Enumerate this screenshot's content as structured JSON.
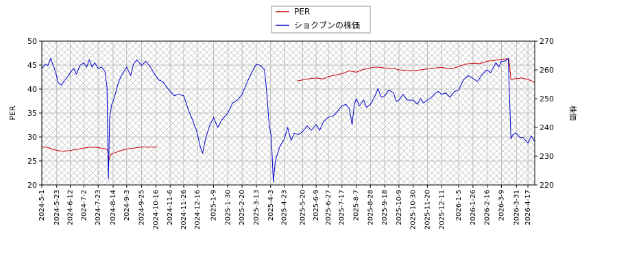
{
  "chart_data": {
    "type": "line",
    "title": "",
    "xlabel": "",
    "ylabel_left": "PER",
    "ylabel_right": "株価",
    "ylim_left": [
      20,
      50
    ],
    "ylim_right": [
      220,
      270
    ],
    "yticks_left": [
      20,
      25,
      30,
      35,
      40,
      45,
      50
    ],
    "yticks_right": [
      220,
      230,
      240,
      250,
      260,
      270
    ],
    "grid": true,
    "legend_position": "top-center",
    "x_range": [
      "2024-05-01",
      "2026-04-27"
    ],
    "x_ticks": [
      "2024-5-1",
      "2024-5-23",
      "2024-6-12",
      "2024-7-2",
      "2024-7-23",
      "2024-8-14",
      "2024-9-3",
      "2024-9-25",
      "2024-10-16",
      "2024-11-6",
      "2024-11-26",
      "2024-12-16",
      "2025-1-9",
      "2025-1-30",
      "2025-2-20",
      "2025-3-13",
      "2025-4-3",
      "2025-4-23",
      "2025-5-20",
      "2025-6-9",
      "2025-6-27",
      "2025-7-17",
      "2025-8-7",
      "2025-8-28",
      "2025-9-18",
      "2025-10-9",
      "2025-10-30",
      "2025-11-20",
      "2025-12-11",
      "2026-1-5",
      "2026-1-26",
      "2026-2-16",
      "2026-3-9",
      "2026-3-31",
      "2026-4-17"
    ],
    "series": [
      {
        "name": "PER",
        "axis": "left",
        "color": "#cc0000",
        "segments": [
          [
            [
              "2024-05-01",
              28.0
            ],
            [
              "2024-05-10",
              27.8
            ],
            [
              "2024-05-20",
              27.3
            ],
            [
              "2024-06-01",
              27.0
            ],
            [
              "2024-06-12",
              27.2
            ],
            [
              "2024-06-25",
              27.5
            ],
            [
              "2024-07-02",
              27.7
            ],
            [
              "2024-07-12",
              27.9
            ],
            [
              "2024-07-23",
              27.8
            ],
            [
              "2024-07-31",
              27.6
            ],
            [
              "2024-08-06",
              27.3
            ],
            [
              "2024-08-07",
              24.7
            ],
            [
              "2024-08-10",
              26.2
            ],
            [
              "2024-08-14",
              26.6
            ],
            [
              "2024-08-22",
              27.0
            ],
            [
              "2024-09-03",
              27.5
            ],
            [
              "2024-09-14",
              27.7
            ],
            [
              "2024-09-25",
              27.9
            ],
            [
              "2024-10-05",
              27.9
            ],
            [
              "2024-10-16",
              27.9
            ],
            [
              "2024-10-18",
              27.9
            ]
          ],
          [
            [
              "2025-05-12",
              41.7
            ],
            [
              "2025-05-20",
              41.9
            ],
            [
              "2025-06-01",
              42.2
            ],
            [
              "2025-06-09",
              42.3
            ],
            [
              "2025-06-20",
              42.1
            ],
            [
              "2025-06-27",
              42.6
            ],
            [
              "2025-07-10",
              43.0
            ],
            [
              "2025-07-17",
              43.2
            ],
            [
              "2025-07-28",
              43.8
            ],
            [
              "2025-08-07",
              43.5
            ],
            [
              "2025-08-15",
              44.0
            ],
            [
              "2025-08-28",
              44.4
            ],
            [
              "2025-09-05",
              44.6
            ],
            [
              "2025-09-18",
              44.4
            ],
            [
              "2025-10-01",
              44.3
            ],
            [
              "2025-10-09",
              44.0
            ],
            [
              "2025-10-20",
              43.9
            ],
            [
              "2025-10-30",
              43.8
            ],
            [
              "2025-11-10",
              44.0
            ],
            [
              "2025-11-20",
              44.2
            ],
            [
              "2025-12-01",
              44.4
            ],
            [
              "2025-12-11",
              44.5
            ],
            [
              "2025-12-25",
              44.2
            ],
            [
              "2026-01-05",
              44.7
            ],
            [
              "2026-01-15",
              45.2
            ],
            [
              "2026-01-26",
              45.4
            ],
            [
              "2026-02-05",
              45.3
            ],
            [
              "2026-02-16",
              45.8
            ],
            [
              "2026-02-28",
              46.0
            ],
            [
              "2026-03-09",
              46.2
            ],
            [
              "2026-03-17",
              46.3
            ],
            [
              "2026-03-20",
              46.1
            ],
            [
              "2026-03-23",
              42.0
            ],
            [
              "2026-03-31",
              42.2
            ],
            [
              "2026-04-08",
              42.3
            ],
            [
              "2026-04-17",
              42.0
            ],
            [
              "2026-04-27",
              41.4
            ]
          ]
        ]
      },
      {
        "name": "ショクブンの株価",
        "axis": "right",
        "color": "#0000cc",
        "segments": [
          [
            [
              "2024-05-01",
              260.5
            ],
            [
              "2024-05-06",
              262.0
            ],
            [
              "2024-05-10",
              261.5
            ],
            [
              "2024-05-14",
              264.0
            ],
            [
              "2024-05-17",
              262.0
            ],
            [
              "2024-05-21",
              259.5
            ],
            [
              "2024-05-25",
              255.5
            ],
            [
              "2024-05-30",
              254.8
            ],
            [
              "2024-06-04",
              256.5
            ],
            [
              "2024-06-08",
              257.5
            ],
            [
              "2024-06-12",
              259.0
            ],
            [
              "2024-06-17",
              260.5
            ],
            [
              "2024-06-21",
              258.5
            ],
            [
              "2024-06-26",
              261.5
            ],
            [
              "2024-07-02",
              262.5
            ],
            [
              "2024-07-06",
              261.0
            ],
            [
              "2024-07-10",
              263.5
            ],
            [
              "2024-07-14",
              261.0
            ],
            [
              "2024-07-18",
              262.5
            ],
            [
              "2024-07-23",
              260.5
            ],
            [
              "2024-07-28",
              261.0
            ],
            [
              "2024-08-02",
              259.5
            ],
            [
              "2024-08-05",
              254.0
            ],
            [
              "2024-08-07",
              222.0
            ],
            [
              "2024-08-09",
              243.5
            ],
            [
              "2024-08-12",
              248.0
            ],
            [
              "2024-08-16",
              250.5
            ],
            [
              "2024-08-21",
              255.0
            ],
            [
              "2024-08-26",
              258.0
            ],
            [
              "2024-09-03",
              261.0
            ],
            [
              "2024-09-09",
              258.0
            ],
            [
              "2024-09-13",
              262.0
            ],
            [
              "2024-09-18",
              263.5
            ],
            [
              "2024-09-25",
              261.5
            ],
            [
              "2024-10-01",
              263.0
            ],
            [
              "2024-10-08",
              261.0
            ],
            [
              "2024-10-14",
              258.5
            ],
            [
              "2024-10-20",
              256.5
            ],
            [
              "2024-10-26",
              256.0
            ],
            [
              "2024-11-01",
              254.0
            ],
            [
              "2024-11-06",
              252.5
            ],
            [
              "2024-11-12",
              251.0
            ],
            [
              "2024-11-18",
              251.5
            ],
            [
              "2024-11-26",
              251.0
            ],
            [
              "2024-12-03",
              246.0
            ],
            [
              "2024-12-10",
              242.0
            ],
            [
              "2024-12-16",
              238.0
            ],
            [
              "2024-12-20",
              233.5
            ],
            [
              "2024-12-24",
              231.0
            ],
            [
              "2024-12-28",
              236.0
            ],
            [
              "2025-01-03",
              240.5
            ],
            [
              "2025-01-09",
              243.5
            ],
            [
              "2025-01-15",
              240.0
            ],
            [
              "2025-01-21",
              242.5
            ],
            [
              "2025-01-30",
              245.0
            ],
            [
              "2025-02-06",
              248.5
            ],
            [
              "2025-02-13",
              249.5
            ],
            [
              "2025-02-20",
              251.5
            ],
            [
              "2025-02-27",
              255.5
            ],
            [
              "2025-03-06",
              259.0
            ],
            [
              "2025-03-13",
              262.0
            ],
            [
              "2025-03-19",
              261.5
            ],
            [
              "2025-03-25",
              260.0
            ],
            [
              "2025-03-28",
              253.0
            ],
            [
              "2025-04-01",
              240.5
            ],
            [
              "2025-04-04",
              237.0
            ],
            [
              "2025-04-07",
              221.0
            ],
            [
              "2025-04-10",
              228.5
            ],
            [
              "2025-04-16",
              233.0
            ],
            [
              "2025-04-23",
              236.0
            ],
            [
              "2025-04-28",
              240.0
            ],
            [
              "2025-05-03",
              235.5
            ],
            [
              "2025-05-08",
              238.0
            ],
            [
              "2025-05-14",
              237.5
            ],
            [
              "2025-05-20",
              238.5
            ],
            [
              "2025-05-27",
              240.5
            ],
            [
              "2025-06-02",
              239.0
            ],
            [
              "2025-06-09",
              241.0
            ],
            [
              "2025-06-14",
              239.0
            ],
            [
              "2025-06-20",
              242.0
            ],
            [
              "2025-06-27",
              243.5
            ],
            [
              "2025-07-04",
              244.0
            ],
            [
              "2025-07-10",
              245.5
            ],
            [
              "2025-07-17",
              247.5
            ],
            [
              "2025-07-23",
              248.0
            ],
            [
              "2025-07-28",
              246.5
            ],
            [
              "2025-08-01",
              241.0
            ],
            [
              "2025-08-04",
              247.5
            ],
            [
              "2025-08-07",
              250.0
            ],
            [
              "2025-08-12",
              247.5
            ],
            [
              "2025-08-18",
              249.5
            ],
            [
              "2025-08-22",
              247.0
            ],
            [
              "2025-08-28",
              248.0
            ],
            [
              "2025-09-04",
              251.0
            ],
            [
              "2025-09-08",
              253.5
            ],
            [
              "2025-09-13",
              250.5
            ],
            [
              "2025-09-18",
              251.0
            ],
            [
              "2025-09-24",
              253.0
            ],
            [
              "2025-10-01",
              252.0
            ],
            [
              "2025-10-05",
              249.0
            ],
            [
              "2025-10-09",
              249.5
            ],
            [
              "2025-10-15",
              251.5
            ],
            [
              "2025-10-21",
              249.5
            ],
            [
              "2025-10-30",
              249.5
            ],
            [
              "2025-11-05",
              248.0
            ],
            [
              "2025-11-10",
              250.0
            ],
            [
              "2025-11-14",
              248.5
            ],
            [
              "2025-11-20",
              249.5
            ],
            [
              "2025-11-26",
              250.5
            ],
            [
              "2025-12-02",
              252.0
            ],
            [
              "2025-12-06",
              252.5
            ],
            [
              "2025-12-11",
              251.5
            ],
            [
              "2025-12-17",
              252.0
            ],
            [
              "2025-12-23",
              250.5
            ],
            [
              "2025-12-30",
              252.5
            ],
            [
              "2026-01-05",
              253.0
            ],
            [
              "2026-01-12",
              256.5
            ],
            [
              "2026-01-19",
              258.0
            ],
            [
              "2026-01-26",
              257.0
            ],
            [
              "2026-02-02",
              256.0
            ],
            [
              "2026-02-09",
              258.5
            ],
            [
              "2026-02-16",
              260.0
            ],
            [
              "2026-02-21",
              259.0
            ],
            [
              "2026-03-01",
              262.5
            ],
            [
              "2026-03-05",
              261.0
            ],
            [
              "2026-03-09",
              263.0
            ],
            [
              "2026-03-14",
              263.0
            ],
            [
              "2026-03-19",
              264.0
            ],
            [
              "2026-03-23",
              236.0
            ],
            [
              "2026-03-26",
              237.5
            ],
            [
              "2026-03-31",
              238.0
            ],
            [
              "2026-04-05",
              236.5
            ],
            [
              "2026-04-10",
              236.5
            ],
            [
              "2026-04-17",
              234.5
            ],
            [
              "2026-04-22",
              237.0
            ],
            [
              "2026-04-27",
              235.0
            ]
          ]
        ]
      }
    ]
  }
}
